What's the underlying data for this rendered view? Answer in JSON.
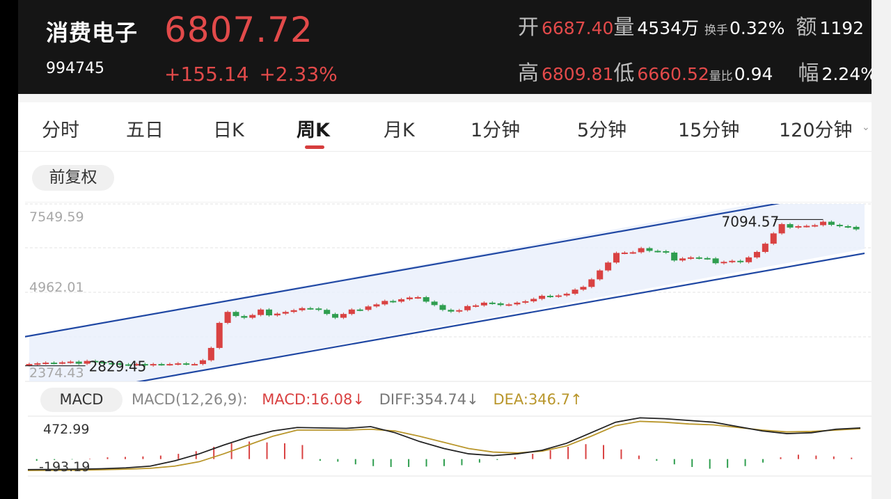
{
  "header": {
    "name": "消费电子",
    "code": "994745",
    "price": "6807.72",
    "change": "+155.14",
    "change_pct": "+2.33%",
    "open_label": "开",
    "open_value": "6687.40",
    "volume_label": "量",
    "volume_value": "4534万",
    "turnover_label": "换手",
    "turnover_value": "0.32%",
    "amount_label": "额",
    "amount_value": "1192",
    "high_label": "高",
    "high_value": "6809.81",
    "low_label": "低",
    "low_value": "6660.52",
    "vol_ratio_label": "量比",
    "vol_ratio_value": "0.94",
    "amplitude_label": "幅",
    "amplitude_value": "2.24%"
  },
  "tabs": [
    {
      "label": "分时"
    },
    {
      "label": "五日"
    },
    {
      "label": "日K"
    },
    {
      "label": "周K",
      "active": true
    },
    {
      "label": "月K"
    },
    {
      "label": "1分钟"
    },
    {
      "label": "5分钟"
    },
    {
      "label": "15分钟"
    },
    {
      "label": "120分钟"
    }
  ],
  "adjust_label": "前复权",
  "colors": {
    "up": "#d94242",
    "down": "#2f9e4f",
    "channel": "#1f47a3",
    "diff": "#222222",
    "dea": "#b9962b"
  },
  "price_chart": {
    "y_axis_labels": [
      "7549.59",
      "4962.01",
      "2374.43"
    ],
    "max_marker": "7094.57",
    "min_marker": "2829.45"
  },
  "macd": {
    "pill_label": "MACD",
    "params": "MACD(12,26,9):",
    "macd_text": "MACD:16.08↓",
    "diff_text": "DIFF:354.74↓",
    "dea_text": "DEA:346.7↑",
    "y_top": "472.99",
    "y_bottom": "-193.19"
  },
  "chart_data": [
    {
      "type": "candlestick",
      "title": "周K 前复权",
      "ylim": [
        2374.43,
        7549.59
      ],
      "grid": true,
      "annotations": [
        "7094.57",
        "2829.45"
      ],
      "closes": [
        2880,
        2900,
        2920,
        2910,
        2930,
        2950,
        2890,
        2970,
        2940,
        2910,
        2900,
        2870,
        2860,
        2880,
        2840,
        2880,
        2870,
        2880,
        2900,
        2880,
        2880,
        2990,
        3350,
        4080,
        4400,
        4280,
        4230,
        4310,
        4470,
        4300,
        4350,
        4400,
        4450,
        4510,
        4500,
        4460,
        4340,
        4230,
        4340,
        4470,
        4460,
        4560,
        4620,
        4720,
        4700,
        4770,
        4820,
        4830,
        4700,
        4600,
        4460,
        4410,
        4450,
        4570,
        4590,
        4670,
        4650,
        4600,
        4620,
        4670,
        4710,
        4780,
        4870,
        4850,
        4880,
        4930,
        5050,
        5130,
        5350,
        5610,
        5840,
        6120,
        6130,
        6140,
        6260,
        6180,
        6170,
        6130,
        5900,
        5960,
        5990,
        5970,
        5960,
        5820,
        5860,
        5890,
        5850,
        5990,
        6150,
        6390,
        6690,
        6960,
        6860,
        6900,
        6910,
        6930,
        7030,
        6940,
        6900,
        6880,
        6808
      ],
      "values_note": "weekly closes read from candle positions"
    },
    {
      "type": "bar+line",
      "title": "MACD(12,26,9)",
      "ylim": [
        -193.19,
        472.99
      ],
      "series": [
        {
          "name": "MACD",
          "values": [
            -20,
            -10,
            -5,
            5,
            20,
            25,
            30,
            40,
            60,
            90,
            140,
            180,
            200,
            190,
            180,
            160,
            -20,
            -30,
            -60,
            -80,
            -90,
            -90,
            -85,
            -80,
            -70,
            -40,
            -10,
            20,
            60,
            100,
            140,
            170,
            160,
            110,
            40,
            -20,
            -60,
            -90,
            -110,
            -100,
            -80,
            -40,
            20,
            50,
            40,
            30,
            16.08
          ]
        },
        {
          "name": "DIFF",
          "values": [
            -120,
            -118,
            -115,
            -110,
            -100,
            -80,
            -20,
            60,
            160,
            250,
            320,
            360,
            355,
            350,
            370,
            300,
            200,
            120,
            60,
            40,
            60,
            100,
            180,
            300,
            420,
            470,
            460,
            440,
            420,
            370,
            320,
            290,
            300,
            340,
            354.74
          ]
        },
        {
          "name": "DEA",
          "values": [
            -130,
            -128,
            -126,
            -122,
            -115,
            -105,
            -80,
            -30,
            60,
            160,
            260,
            330,
            330,
            330,
            340,
            320,
            260,
            190,
            120,
            80,
            70,
            90,
            150,
            260,
            380,
            430,
            420,
            400,
            390,
            360,
            330,
            310,
            315,
            330,
            346.7
          ]
        }
      ]
    }
  ]
}
